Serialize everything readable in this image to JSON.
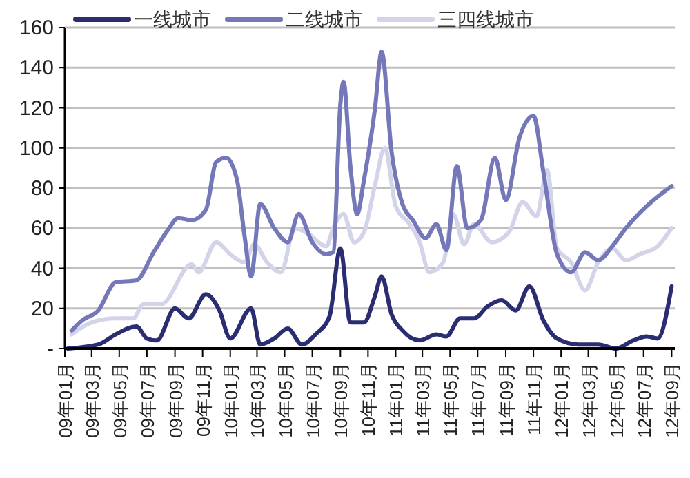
{
  "chart_data": {
    "type": "line",
    "xlim": [
      "2009-01-01",
      "2012-09-08"
    ],
    "xticks": [
      {
        "value": "2009-01-01",
        "label": "09年01月"
      },
      {
        "value": "2009-03-01",
        "label": "09年03月"
      },
      {
        "value": "2009-05-01",
        "label": "09年05月"
      },
      {
        "value": "2009-07-01",
        "label": "09年07月"
      },
      {
        "value": "2009-09-01",
        "label": "09年09月"
      },
      {
        "value": "2009-11-01",
        "label": "09年11月"
      },
      {
        "value": "2010-01-01",
        "label": "10年01月"
      },
      {
        "value": "2010-03-01",
        "label": "10年03月"
      },
      {
        "value": "2010-05-01",
        "label": "10年05月"
      },
      {
        "value": "2010-07-01",
        "label": "10年07月"
      },
      {
        "value": "2010-09-01",
        "label": "10年09月"
      },
      {
        "value": "2010-11-01",
        "label": "10年11月"
      },
      {
        "value": "2011-01-01",
        "label": "11年01月"
      },
      {
        "value": "2011-03-01",
        "label": "11年03月"
      },
      {
        "value": "2011-05-01",
        "label": "11年05月"
      },
      {
        "value": "2011-07-01",
        "label": "11年07月"
      },
      {
        "value": "2011-09-01",
        "label": "11年09月"
      },
      {
        "value": "2011-11-01",
        "label": "11年11月"
      },
      {
        "value": "2012-01-01",
        "label": "12年01月"
      },
      {
        "value": "2012-03-01",
        "label": "12年03月"
      },
      {
        "value": "2012-05-01",
        "label": "12年05月"
      },
      {
        "value": "2012-07-01",
        "label": "12年07月"
      },
      {
        "value": "2012-09-01",
        "label": "12年09月"
      }
    ],
    "ylim": [
      0,
      160
    ],
    "yticks": [
      {
        "value": 0,
        "label": "-"
      },
      20,
      40,
      60,
      80,
      100,
      120,
      140,
      160
    ],
    "grid": "y",
    "legend": "top",
    "line_style": "solid",
    "marker": "none",
    "series": [
      {
        "name": "一线城市",
        "color": "#2b2d72",
        "x": [
          "2009-01-08",
          "2009-03-16",
          "2009-04-23",
          "2009-06-08",
          "2009-07-01",
          "2009-07-23",
          "2009-09-01",
          "2009-10-01",
          "2009-11-08",
          "2009-12-08",
          "2010-01-01",
          "2010-02-16",
          "2010-03-08",
          "2010-04-08",
          "2010-05-08",
          "2010-06-08",
          "2010-07-08",
          "2010-08-08",
          "2010-09-01",
          "2010-09-23",
          "2010-10-23",
          "2010-11-16",
          "2010-12-01",
          "2010-12-23",
          "2011-01-16",
          "2011-02-23",
          "2011-04-01",
          "2011-04-23",
          "2011-05-23",
          "2011-06-23",
          "2011-07-23",
          "2011-08-23",
          "2011-09-23",
          "2011-10-23",
          "2011-11-23",
          "2011-12-23",
          "2012-02-08",
          "2012-03-23",
          "2012-05-01",
          "2012-06-08",
          "2012-07-08",
          "2012-08-01",
          "2012-09-01"
        ],
        "values": [
          0,
          2,
          7,
          11,
          5,
          4,
          20,
          15,
          27,
          19,
          5,
          20,
          2,
          5,
          10,
          2,
          7,
          16,
          50,
          13,
          13,
          26,
          36,
          17,
          9,
          4,
          7,
          6,
          15,
          15,
          21,
          24,
          19,
          31,
          14,
          5,
          2,
          2,
          0,
          4,
          6,
          5,
          31
        ]
      },
      {
        "name": "二线城市",
        "color": "#7477b8",
        "x": [
          "2009-01-16",
          "2009-02-08",
          "2009-03-16",
          "2009-04-23",
          "2009-06-08",
          "2009-07-16",
          "2009-08-16",
          "2009-09-08",
          "2009-10-08",
          "2009-11-08",
          "2009-12-01",
          "2009-12-23",
          "2010-01-16",
          "2010-02-01",
          "2010-02-16",
          "2010-03-08",
          "2010-04-08",
          "2010-05-08",
          "2010-06-01",
          "2010-07-01",
          "2010-08-01",
          "2010-08-16",
          "2010-09-01",
          "2010-09-08",
          "2010-09-23",
          "2010-10-08",
          "2010-10-23",
          "2010-11-16",
          "2010-12-01",
          "2010-12-23",
          "2011-01-16",
          "2011-02-08",
          "2011-03-08",
          "2011-04-01",
          "2011-04-23",
          "2011-05-16",
          "2011-06-08",
          "2011-07-08",
          "2011-08-08",
          "2011-09-01",
          "2011-10-01",
          "2011-11-01",
          "2011-11-23",
          "2011-12-23",
          "2012-01-23",
          "2012-02-23",
          "2012-03-23",
          "2012-04-23",
          "2012-05-23",
          "2012-07-08",
          "2012-09-01"
        ],
        "values": [
          9,
          14,
          19,
          33,
          34,
          48,
          59,
          65,
          64,
          69,
          93,
          95,
          84,
          57,
          36,
          72,
          60,
          53,
          67,
          53,
          47,
          48,
          122,
          133,
          91,
          67,
          84,
          119,
          148,
          98,
          72,
          64,
          55,
          62,
          49,
          91,
          60,
          64,
          95,
          74,
          105,
          116,
          88,
          47,
          38,
          48,
          44,
          51,
          60,
          71,
          81
        ]
      },
      {
        "name": "三四线城市",
        "color": "#d3d4ea",
        "x": [
          "2009-01-16",
          "2009-03-01",
          "2009-04-23",
          "2009-06-01",
          "2009-06-23",
          "2009-08-01",
          "2009-10-08",
          "2009-10-23",
          "2009-12-01",
          "2010-01-01",
          "2010-02-01",
          "2010-02-23",
          "2010-03-23",
          "2010-04-23",
          "2010-05-23",
          "2010-06-23",
          "2010-08-01",
          "2010-08-16",
          "2010-09-08",
          "2010-10-01",
          "2010-10-23",
          "2010-11-16",
          "2010-12-08",
          "2011-01-01",
          "2011-02-01",
          "2011-02-23",
          "2011-03-16",
          "2011-04-16",
          "2011-05-08",
          "2011-06-01",
          "2011-06-23",
          "2011-08-01",
          "2011-09-08",
          "2011-10-08",
          "2011-11-08",
          "2011-12-01",
          "2011-12-23",
          "2012-01-23",
          "2012-02-23",
          "2012-03-23",
          "2012-04-23",
          "2012-05-23",
          "2012-06-23",
          "2012-08-01",
          "2012-09-01"
        ],
        "values": [
          7,
          13,
          15,
          15,
          22,
          22,
          42,
          38,
          53,
          47,
          43,
          52,
          43,
          38,
          60,
          57,
          51,
          60,
          67,
          53,
          58,
          81,
          100,
          71,
          62,
          53,
          38,
          43,
          67,
          52,
          62,
          53,
          58,
          73,
          66,
          89,
          50,
          43,
          29,
          43,
          50,
          44,
          47,
          51,
          60
        ]
      }
    ]
  }
}
